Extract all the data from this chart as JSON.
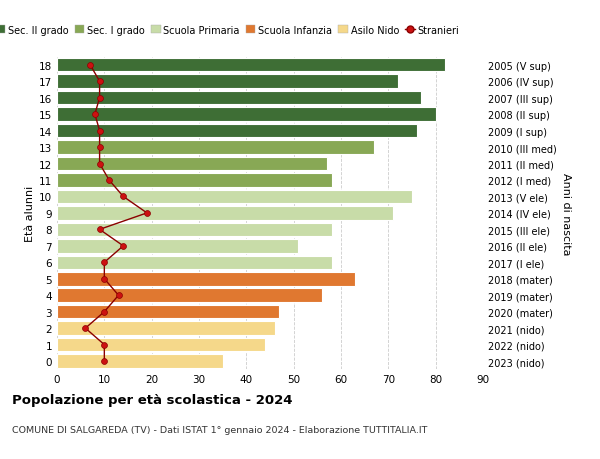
{
  "ages": [
    0,
    1,
    2,
    3,
    4,
    5,
    6,
    7,
    8,
    9,
    10,
    11,
    12,
    13,
    14,
    15,
    16,
    17,
    18
  ],
  "bar_values": [
    35,
    44,
    46,
    47,
    56,
    63,
    58,
    51,
    58,
    71,
    75,
    58,
    57,
    67,
    76,
    80,
    77,
    72,
    82
  ],
  "bar_colors": [
    "#f5d88a",
    "#f5d88a",
    "#f5d88a",
    "#e07830",
    "#e07830",
    "#e07830",
    "#c8dca8",
    "#c8dca8",
    "#c8dca8",
    "#c8dca8",
    "#c8dca8",
    "#88a855",
    "#88a855",
    "#88a855",
    "#3e6e35",
    "#3e6e35",
    "#3e6e35",
    "#3e6e35",
    "#3e6e35"
  ],
  "stranieri_values": [
    10,
    10,
    6,
    10,
    13,
    10,
    10,
    14,
    9,
    19,
    14,
    11,
    9,
    9,
    9,
    8,
    9,
    9,
    7
  ],
  "right_labels": [
    "2023 (nido)",
    "2022 (nido)",
    "2021 (nido)",
    "2020 (mater)",
    "2019 (mater)",
    "2018 (mater)",
    "2017 (I ele)",
    "2016 (II ele)",
    "2015 (III ele)",
    "2014 (IV ele)",
    "2013 (V ele)",
    "2012 (I med)",
    "2011 (II med)",
    "2010 (III med)",
    "2009 (I sup)",
    "2008 (II sup)",
    "2007 (III sup)",
    "2006 (IV sup)",
    "2005 (V sup)"
  ],
  "ylabel_left": "Età alunni",
  "ylabel_right": "Anni di nascita",
  "title": "Popolazione per età scolastica - 2024",
  "subtitle": "COMUNE DI SALGAREDA (TV) - Dati ISTAT 1° gennaio 2024 - Elaborazione TUTTITALIA.IT",
  "xlim": [
    0,
    90
  ],
  "xticks": [
    0,
    10,
    20,
    30,
    40,
    50,
    60,
    70,
    80,
    90
  ],
  "legend_labels": [
    "Sec. II grado",
    "Sec. I grado",
    "Scuola Primaria",
    "Scuola Infanzia",
    "Asilo Nido",
    "Stranieri"
  ],
  "legend_colors": [
    "#3e6e35",
    "#88a855",
    "#c8dca8",
    "#e07830",
    "#f5d88a",
    "#aa1111"
  ],
  "bg_color": "#ffffff",
  "grid_color": "#cccccc",
  "bar_height": 0.82
}
